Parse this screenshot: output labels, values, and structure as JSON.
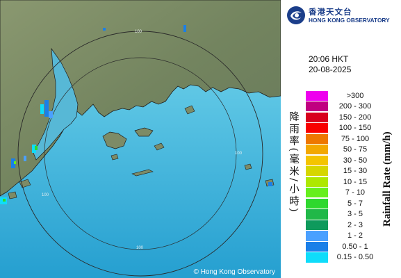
{
  "logo": {
    "chinese": "香港天文台",
    "english": "HONG KONG OBSERVATORY"
  },
  "timestamp": {
    "time": "20:06 HKT",
    "date": "20-08-2025"
  },
  "legend": {
    "title_en": "Rainfall Rate (mm/h)",
    "title_cn": "降雨率(毫米/小時)",
    "items": [
      {
        "label": ">300",
        "color": "#ee00ee"
      },
      {
        "label": "200 - 300",
        "color": "#c00080"
      },
      {
        "label": "150 - 200",
        "color": "#d8001c"
      },
      {
        "label": "100 - 150",
        "color": "#f80000"
      },
      {
        "label": "75 - 100",
        "color": "#ee7700"
      },
      {
        "label": "50 - 75",
        "color": "#f3a800"
      },
      {
        "label": "30 - 50",
        "color": "#f4c400"
      },
      {
        "label": "15 - 30",
        "color": "#d6d600"
      },
      {
        "label": "10 - 15",
        "color": "#aee800"
      },
      {
        "label": "7 - 10",
        "color": "#66ef1c"
      },
      {
        "label": "5 - 7",
        "color": "#2ed82e"
      },
      {
        "label": "3 - 5",
        "color": "#20b848"
      },
      {
        "label": "2 - 3",
        "color": "#0e9a5c"
      },
      {
        "label": "1 - 2",
        "color": "#4aa0ff"
      },
      {
        "label": "0.50 - 1",
        "color": "#1a7fe8"
      },
      {
        "label": "0.15 - 0.50",
        "color": "#0fdcfa"
      }
    ]
  },
  "map": {
    "range_ring_label": "100",
    "copyright": "© Hong Kong Observatory",
    "colors": {
      "land": "#7a8a66",
      "sea": "#62c7e4",
      "deep_sea": "#27a9d4",
      "coast": "#1c1c1c",
      "range_ring": "#2a2a2a"
    }
  }
}
